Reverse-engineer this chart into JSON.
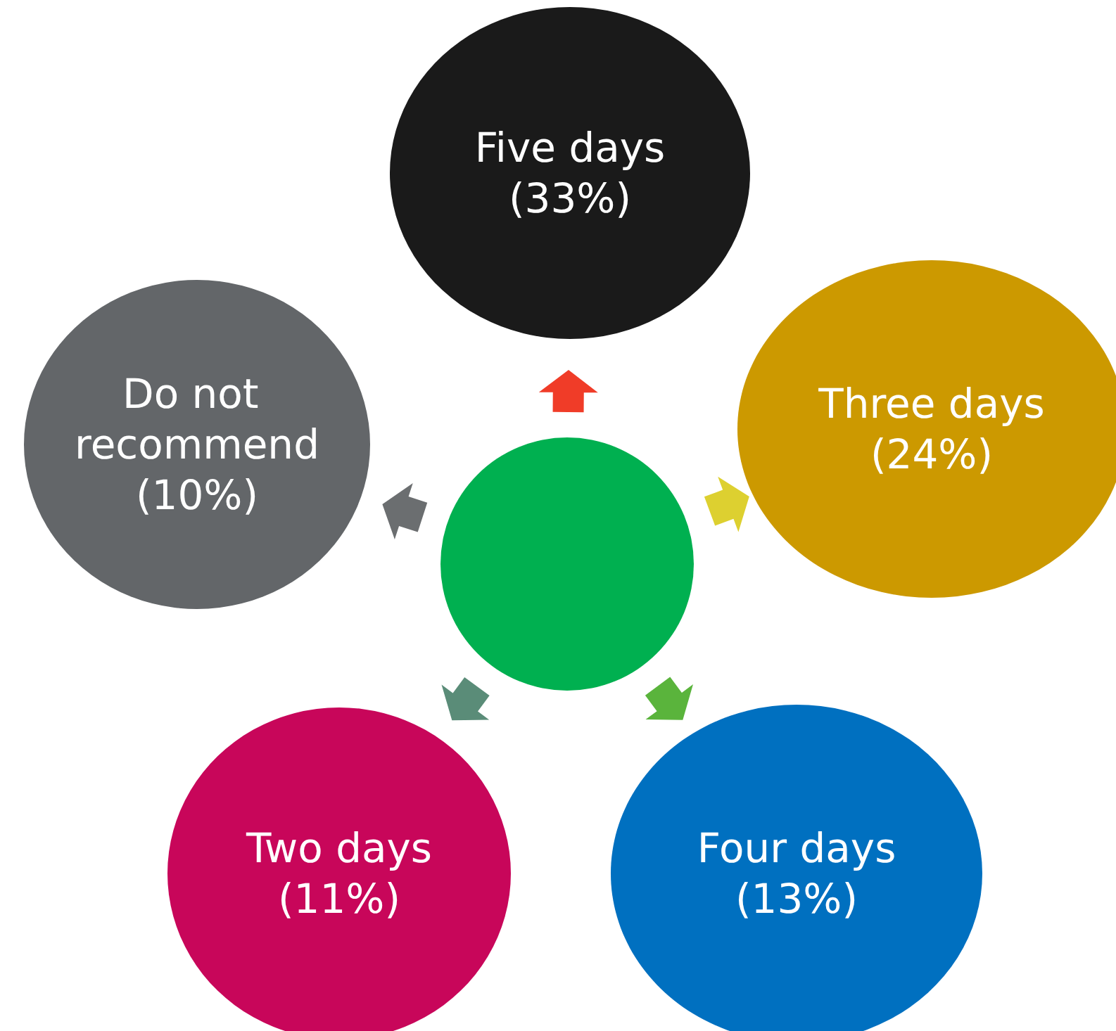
{
  "chart_data": {
    "type": "other",
    "categories": [
      "Five days",
      "Three days",
      "Four days",
      "Two days",
      "Do not recommend"
    ],
    "values": [
      33,
      24,
      13,
      11,
      10
    ],
    "value_labels": [
      "(33%)",
      "(24%)",
      "(13%)",
      "(11%)",
      "(10%)"
    ],
    "colors": [
      "#1a1a1a",
      "#cc9900",
      "#0070c0",
      "#c8065a",
      "#636669"
    ]
  }
}
